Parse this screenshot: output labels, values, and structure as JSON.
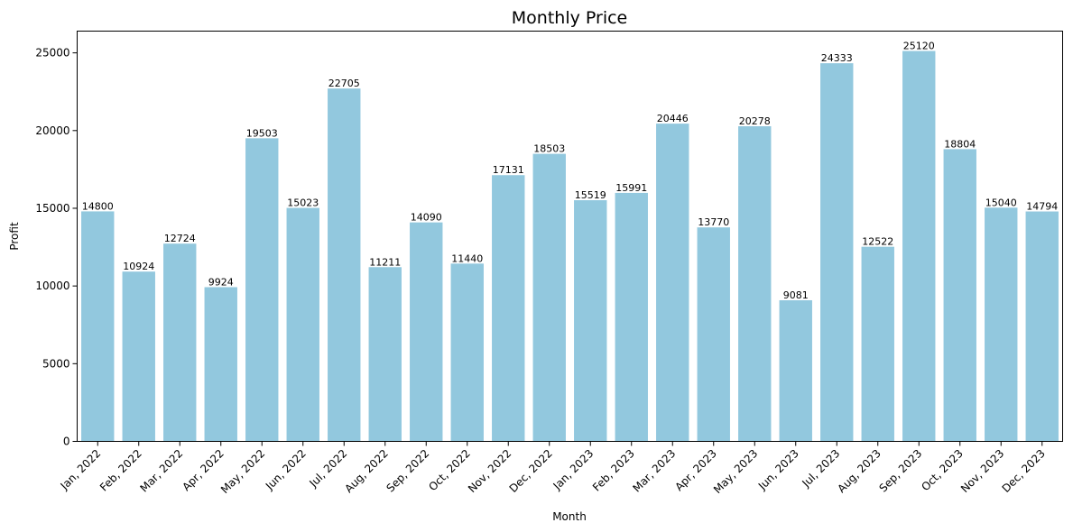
{
  "chart_data": {
    "type": "bar",
    "title": "Monthly Price",
    "xlabel": "Month",
    "ylabel": "Profit",
    "ylim": [
      0,
      26400
    ],
    "yticks": [
      0,
      5000,
      10000,
      15000,
      20000,
      25000
    ],
    "grid": false,
    "bar_color": "#92c8de",
    "categories": [
      "Jan, 2022",
      "Feb, 2022",
      "Mar, 2022",
      "Apr, 2022",
      "May, 2022",
      "Jun, 2022",
      "Jul, 2022",
      "Aug, 2022",
      "Sep, 2022",
      "Oct, 2022",
      "Nov, 2022",
      "Dec, 2022",
      "Jan, 2023",
      "Feb, 2023",
      "Mar, 2023",
      "Apr, 2023",
      "May, 2023",
      "Jun, 2023",
      "Jul, 2023",
      "Aug, 2023",
      "Sep, 2023",
      "Oct, 2023",
      "Nov, 2023",
      "Dec, 2023"
    ],
    "values": [
      14800,
      10924,
      12724,
      9924,
      19503,
      15023,
      22705,
      11211,
      14090,
      11440,
      17131,
      18503,
      15519,
      15991,
      20446,
      13770,
      20278,
      9081,
      24333,
      12522,
      25120,
      18804,
      15040,
      14794
    ]
  }
}
